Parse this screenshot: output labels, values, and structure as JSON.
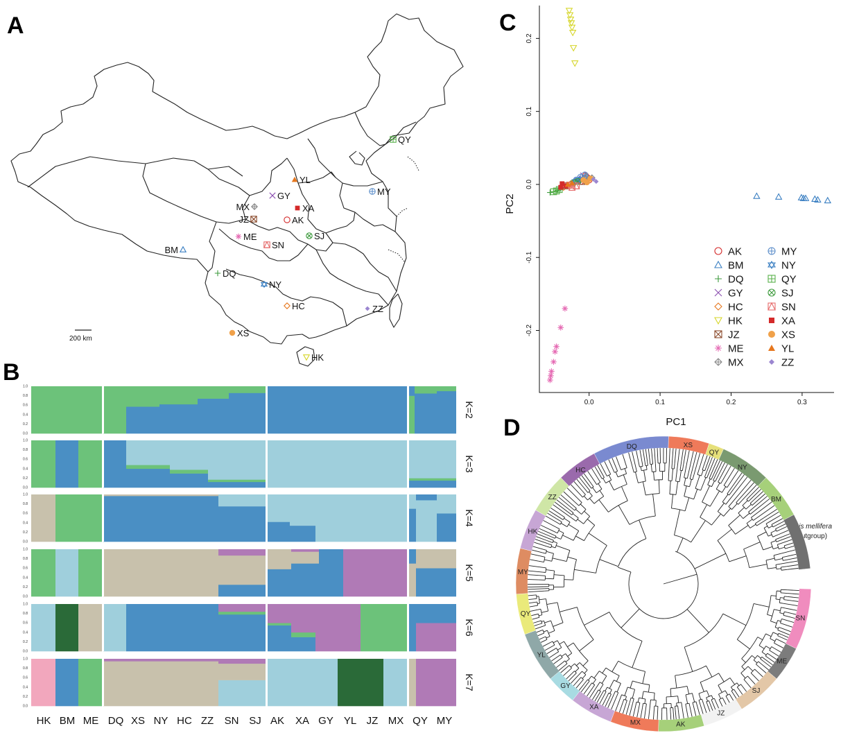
{
  "panels": {
    "a": "A",
    "b": "B",
    "c": "C",
    "d": "D"
  },
  "map": {
    "scale_label": "200 km",
    "sites": [
      {
        "code": "QY",
        "color": "#58b04a",
        "symbol": "boxplus"
      },
      {
        "code": "YL",
        "color": "#e6771e",
        "symbol": "triangle-filled"
      },
      {
        "code": "MY",
        "color": "#5b8dc9",
        "symbol": "circleplus"
      },
      {
        "code": "GY",
        "color": "#8b4fb0",
        "symbol": "cross"
      },
      {
        "code": "MX",
        "color": "#888888",
        "symbol": "diamondplus"
      },
      {
        "code": "XA",
        "color": "#d42a2a",
        "symbol": "square-filled"
      },
      {
        "code": "JZ",
        "color": "#8b4a2c",
        "symbol": "boxtimes"
      },
      {
        "code": "AK",
        "color": "#d42a2a",
        "symbol": "circle"
      },
      {
        "code": "ME",
        "color": "#e56ab3",
        "symbol": "asterisk"
      },
      {
        "code": "SN",
        "color": "#e66b6b",
        "symbol": "boxtri"
      },
      {
        "code": "SJ",
        "color": "#3c9a3c",
        "symbol": "circletimes"
      },
      {
        "code": "BM",
        "color": "#3a7fc2",
        "symbol": "triangle"
      },
      {
        "code": "DQ",
        "color": "#3c9a3c",
        "symbol": "plus"
      },
      {
        "code": "NY",
        "color": "#3a7fc2",
        "symbol": "star"
      },
      {
        "code": "HC",
        "color": "#e6771e",
        "symbol": "diamond"
      },
      {
        "code": "ZZ",
        "color": "#9b86d0",
        "symbol": "diamond-filled"
      },
      {
        "code": "XS",
        "color": "#f0a14a",
        "symbol": "circle-filled"
      },
      {
        "code": "HK",
        "color": "#d6d62a",
        "symbol": "triangle-down"
      }
    ]
  },
  "structure": {
    "y_ticks": [
      "0.0",
      "0.2",
      "0.4",
      "0.6",
      "0.8",
      "1.0"
    ],
    "k_labels": [
      "K=2",
      "K=3",
      "K=4",
      "K=5",
      "K=6",
      "K=7"
    ],
    "pop_labels": [
      "HK",
      "BM",
      "ME",
      "DQ",
      "XS",
      "NY",
      "HC",
      "ZZ",
      "SN",
      "SJ",
      "AK",
      "XA",
      "GY",
      "YL",
      "JZ",
      "MX",
      "QY",
      "MY"
    ],
    "colors": {
      "green": "#6cc27a",
      "blue": "#4a8fc4",
      "lightblue": "#9fcfdc",
      "beige": "#c8c1ac",
      "purple": "#b07ab6",
      "darkgreen": "#2a6a38",
      "pink": "#f2a7bd"
    }
  },
  "chart_data": {
    "type": "scatter",
    "xlabel": "PC1",
    "ylabel": "PC2",
    "x_ticks": [
      "0.0",
      "0.1",
      "0.2",
      "0.3"
    ],
    "y_ticks": [
      "-0.2",
      "-0.1",
      "0.0",
      "0.1",
      "0.2"
    ],
    "xlim": [
      -0.07,
      0.345
    ],
    "ylim": [
      -0.285,
      0.245
    ],
    "legend_position": "bottom-right",
    "series": [
      {
        "name": "AK",
        "color": "#d42a2a",
        "symbol": "circle",
        "points": [
          [
            -0.005,
            0.012
          ],
          [
            0.0,
            0.006
          ],
          [
            -0.012,
            0.004
          ],
          [
            -0.002,
            0.009
          ]
        ]
      },
      {
        "name": "BM",
        "color": "#3a7fc2",
        "symbol": "triangle",
        "points": [
          [
            0.236,
            -0.016
          ],
          [
            0.267,
            -0.017
          ],
          [
            0.299,
            -0.018
          ],
          [
            0.302,
            -0.019
          ],
          [
            0.305,
            -0.019
          ],
          [
            0.318,
            -0.02
          ],
          [
            0.322,
            -0.021
          ],
          [
            0.336,
            -0.022
          ]
        ]
      },
      {
        "name": "DQ",
        "color": "#3c9a3c",
        "symbol": "plus",
        "points": [
          [
            -0.055,
            -0.011
          ],
          [
            -0.048,
            -0.01
          ],
          [
            -0.044,
            -0.008
          ],
          [
            -0.04,
            -0.006
          ]
        ]
      },
      {
        "name": "GY",
        "color": "#8b4fb0",
        "symbol": "cross",
        "points": [
          [
            -0.01,
            0.008
          ],
          [
            -0.016,
            0.005
          ],
          [
            -0.008,
            0.012
          ]
        ]
      },
      {
        "name": "HC",
        "color": "#e6771e",
        "symbol": "diamond",
        "points": [
          [
            -0.036,
            -0.004
          ],
          [
            -0.03,
            -0.002
          ],
          [
            -0.026,
            0.001
          ]
        ]
      },
      {
        "name": "HK",
        "color": "#d6d62a",
        "symbol": "triangle-down",
        "points": [
          [
            -0.028,
            0.238
          ],
          [
            -0.027,
            0.232
          ],
          [
            -0.026,
            0.226
          ],
          [
            -0.025,
            0.221
          ],
          [
            -0.024,
            0.215
          ],
          [
            -0.023,
            0.208
          ],
          [
            -0.022,
            0.187
          ],
          [
            -0.02,
            0.166
          ]
        ]
      },
      {
        "name": "JZ",
        "color": "#8b4a2c",
        "symbol": "boxtimes",
        "points": [
          [
            -0.034,
            -0.002
          ],
          [
            -0.01,
            0.004
          ],
          [
            -0.004,
            0.007
          ]
        ]
      },
      {
        "name": "ME",
        "color": "#e56ab3",
        "symbol": "asterisk",
        "points": [
          [
            -0.034,
            -0.17
          ],
          [
            -0.04,
            -0.196
          ],
          [
            -0.046,
            -0.222
          ],
          [
            -0.048,
            -0.229
          ],
          [
            -0.05,
            -0.243
          ],
          [
            -0.053,
            -0.256
          ],
          [
            -0.054,
            -0.262
          ],
          [
            -0.055,
            -0.268
          ]
        ]
      },
      {
        "name": "MX",
        "color": "#888888",
        "symbol": "diamondplus",
        "points": [
          [
            -0.004,
            0.011
          ],
          [
            -0.001,
            0.007
          ],
          [
            0.004,
            0.009
          ]
        ]
      },
      {
        "name": "MY",
        "color": "#5b8dc9",
        "symbol": "circleplus",
        "points": [
          [
            -0.018,
            0.006
          ],
          [
            -0.012,
            0.01
          ],
          [
            -0.006,
            0.013
          ]
        ]
      },
      {
        "name": "NY",
        "color": "#3a7fc2",
        "symbol": "star",
        "points": [
          [
            -0.02,
            0.004
          ],
          [
            -0.014,
            0.006
          ]
        ]
      },
      {
        "name": "QY",
        "color": "#58b04a",
        "symbol": "boxplus",
        "points": [
          [
            -0.05,
            -0.01
          ],
          [
            -0.046,
            -0.009
          ],
          [
            -0.042,
            -0.007
          ]
        ]
      },
      {
        "name": "SJ",
        "color": "#3c9a3c",
        "symbol": "circletimes",
        "points": [
          [
            -0.022,
            0.002
          ],
          [
            -0.016,
            0.004
          ]
        ]
      },
      {
        "name": "SN",
        "color": "#e66b6b",
        "symbol": "boxtri",
        "points": [
          [
            -0.024,
            -0.004
          ],
          [
            -0.018,
            -0.002
          ],
          [
            -0.028,
            -0.001
          ]
        ]
      },
      {
        "name": "XA",
        "color": "#d42a2a",
        "symbol": "square-filled",
        "points": [
          [
            -0.04,
            -0.004
          ],
          [
            -0.033,
            -0.002
          ],
          [
            -0.038,
            0.001
          ]
        ]
      },
      {
        "name": "XS",
        "color": "#f0a14a",
        "symbol": "circle-filled",
        "points": [
          [
            -0.008,
            0.006
          ],
          [
            0.002,
            0.008
          ],
          [
            -0.003,
            0.003
          ]
        ]
      },
      {
        "name": "YL",
        "color": "#e6771e",
        "symbol": "triangle-filled",
        "points": [
          [
            -0.03,
            0.0
          ],
          [
            -0.024,
            0.002
          ]
        ]
      },
      {
        "name": "ZZ",
        "color": "#9b86d0",
        "symbol": "diamond-filled",
        "points": [
          [
            0.01,
            0.004
          ],
          [
            0.006,
            0.007
          ]
        ]
      }
    ]
  },
  "tree": {
    "outgroup_name": "Apis mellifera",
    "outgroup_note": "(outgroup)",
    "outgroup_color": "#707070",
    "segments": [
      {
        "code": "XS",
        "color": "#ef7a5a"
      },
      {
        "code": "QY",
        "color": "#e6e07a"
      },
      {
        "code": "NY",
        "color": "#7a9a70"
      },
      {
        "code": "BM",
        "color": "#a6d07a"
      },
      {
        "code": "SN",
        "color": "#f08cbe"
      },
      {
        "code": "ME",
        "color": "#7c7c7c"
      },
      {
        "code": "SJ",
        "color": "#e3c7a7"
      },
      {
        "code": "JZ",
        "color": "#f2f2f2"
      },
      {
        "code": "AK",
        "color": "#a6d07a"
      },
      {
        "code": "MX",
        "color": "#ef7a5a"
      },
      {
        "code": "XA",
        "color": "#c7a6d5"
      },
      {
        "code": "GY",
        "color": "#a8dbe2"
      },
      {
        "code": "YL",
        "color": "#8fa8a8"
      },
      {
        "code": "QY",
        "color": "#eaea7a"
      },
      {
        "code": "MY",
        "color": "#de8c62"
      },
      {
        "code": "HK",
        "color": "#c7a6d5"
      },
      {
        "code": "ZZ",
        "color": "#cfe6a6"
      },
      {
        "code": "HC",
        "color": "#9a6aac"
      },
      {
        "code": "DQ",
        "color": "#7a8ad0"
      }
    ]
  }
}
